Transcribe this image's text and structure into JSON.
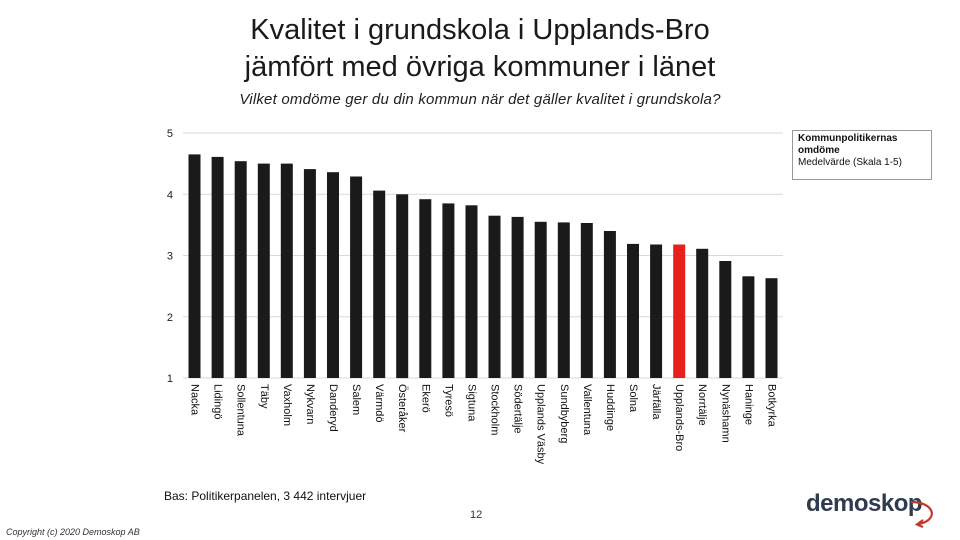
{
  "header": {
    "title_line1": "Kvalitet i grundskola i Upplands-Bro",
    "title_line2": "jämfört med övriga kommuner i länet",
    "subtitle": "Vilket omdöme ger du din kommun när det gäller kvalitet i grundskola?"
  },
  "legend": {
    "line1": "Kommunpolitikernas",
    "line2": "omdöme",
    "line3": "Medelvärde (Skala 1-5)"
  },
  "footer": {
    "base_text": "Bas: Politikerpanelen, 3 442 intervjuer",
    "page_number": "12",
    "copyright": "Copyright (c) 2020 Demoskop AB",
    "logo_text": "demoskop"
  },
  "colors": {
    "bar": "#1a1a1a",
    "highlight": "#e8201c",
    "grid": "#d9d9d9",
    "logo_arc": "#c0392b"
  },
  "chart_data": {
    "type": "bar",
    "title": "",
    "xlabel": "",
    "ylabel": "",
    "ylim": [
      1,
      5
    ],
    "yticks": [
      1,
      2,
      3,
      4,
      5
    ],
    "grid": true,
    "legend_position": "top-right",
    "highlight_category": "Upplands-Bro",
    "categories": [
      "Nacka",
      "Lidingö",
      "Sollentuna",
      "Täby",
      "Vaxholm",
      "Nykvarn",
      "Danderyd",
      "Salem",
      "Värmdö",
      "Österåker",
      "Ekerö",
      "Tyresö",
      "Sigtuna",
      "Stockholm",
      "Södertälje",
      "Upplands Väsby",
      "Sundbyberg",
      "Vallentuna",
      "Huddinge",
      "Solna",
      "Järfälla",
      "Upplands-Bro",
      "Norrtälje",
      "Nynäshamn",
      "Haninge",
      "Botkyrka"
    ],
    "values": [
      4.65,
      4.61,
      4.54,
      4.5,
      4.5,
      4.41,
      4.36,
      4.29,
      4.06,
      4.0,
      3.92,
      3.85,
      3.82,
      3.65,
      3.63,
      3.55,
      3.54,
      3.53,
      3.4,
      3.19,
      3.18,
      3.18,
      3.11,
      2.91,
      2.66,
      2.63
    ]
  }
}
